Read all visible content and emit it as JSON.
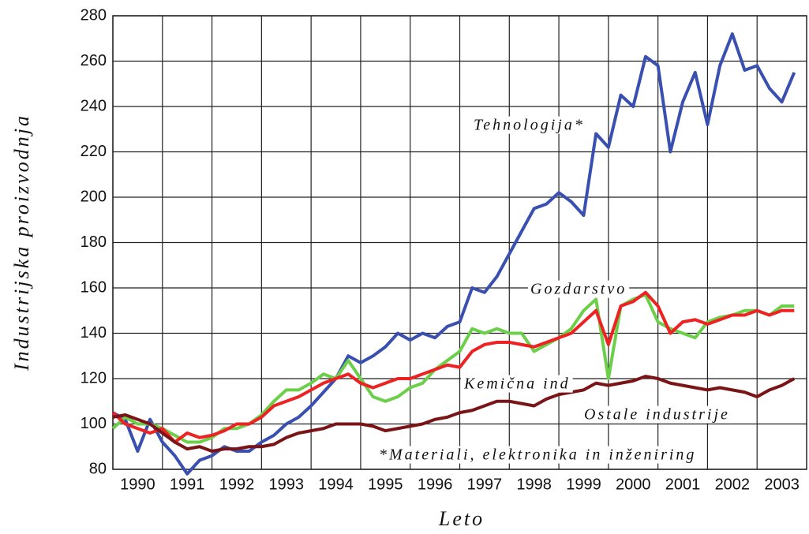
{
  "chart_data": {
    "type": "line",
    "ylabel": "Industrijska proizvodnja",
    "xlabel": "Leto",
    "annotation": "*Materiali, elektronika in inženiring",
    "x": [
      1990,
      1990.25,
      1990.5,
      1990.75,
      1991,
      1991.25,
      1991.5,
      1991.75,
      1992,
      1992.25,
      1992.5,
      1992.75,
      1993,
      1993.25,
      1993.5,
      1993.75,
      1994,
      1994.25,
      1994.5,
      1994.75,
      1995,
      1995.25,
      1995.5,
      1995.75,
      1996,
      1996.25,
      1996.5,
      1996.75,
      1997,
      1997.25,
      1997.5,
      1997.75,
      1998,
      1998.25,
      1998.5,
      1998.75,
      1999,
      1999.25,
      1999.5,
      1999.75,
      2000,
      2000.25,
      2000.5,
      2000.75,
      2001,
      2001.25,
      2001.5,
      2001.75,
      2002,
      2002.25,
      2002.5,
      2002.75,
      2003,
      2003.25,
      2003.5,
      2003.75
    ],
    "series": [
      {
        "name": "Tehnologija*",
        "color": "#3a50b0",
        "values": [
          105,
          102,
          88,
          102,
          92,
          86,
          78,
          84,
          86,
          90,
          88,
          88,
          92,
          95,
          100,
          103,
          108,
          114,
          120,
          130,
          127,
          130,
          134,
          140,
          137,
          140,
          138,
          143,
          145,
          160,
          158,
          165,
          175,
          185,
          195,
          197,
          202,
          198,
          192,
          228,
          222,
          245,
          240,
          262,
          258,
          220,
          242,
          255,
          232,
          258,
          272,
          256,
          258,
          248,
          242,
          255
        ]
      },
      {
        "name": "Gozdarstvo",
        "color": "#6ccf4a",
        "values": [
          98,
          103,
          100,
          100,
          98,
          95,
          92,
          92,
          94,
          98,
          98,
          100,
          104,
          110,
          115,
          115,
          118,
          122,
          120,
          128,
          120,
          112,
          110,
          112,
          116,
          118,
          124,
          128,
          132,
          142,
          140,
          142,
          140,
          140,
          132,
          135,
          138,
          142,
          150,
          155,
          120,
          152,
          155,
          157,
          145,
          142,
          140,
          138,
          145,
          147,
          148,
          150,
          150,
          148,
          152,
          152
        ]
      },
      {
        "name": "Kemična ind",
        "color": "#ee2222",
        "values": [
          105,
          100,
          98,
          96,
          98,
          92,
          96,
          94,
          95,
          97,
          100,
          100,
          103,
          108,
          110,
          112,
          115,
          118,
          120,
          122,
          118,
          116,
          118,
          120,
          120,
          122,
          124,
          126,
          125,
          132,
          135,
          136,
          136,
          135,
          134,
          136,
          138,
          140,
          145,
          150,
          135,
          152,
          154,
          158,
          152,
          140,
          145,
          146,
          144,
          146,
          148,
          148,
          150,
          148,
          150,
          150
        ]
      },
      {
        "name": "Ostale industrije",
        "color": "#7a1416",
        "values": [
          103,
          104,
          102,
          100,
          96,
          92,
          89,
          90,
          88,
          89,
          89,
          90,
          90,
          91,
          94,
          96,
          97,
          98,
          100,
          100,
          100,
          99,
          97,
          98,
          99,
          100,
          102,
          103,
          105,
          106,
          108,
          110,
          110,
          109,
          108,
          111,
          113,
          114,
          115,
          118,
          117,
          118,
          119,
          121,
          120,
          118,
          117,
          116,
          115,
          116,
          115,
          114,
          112,
          115,
          117,
          120
        ]
      }
    ],
    "xlim": [
      1990,
      2004
    ],
    "ylim": [
      80,
      280
    ],
    "xticks": [
      1990,
      1991,
      1992,
      1993,
      1994,
      1995,
      1996,
      1997,
      1998,
      1999,
      2000,
      2001,
      2002,
      2003
    ],
    "yticks": [
      80,
      100,
      120,
      140,
      160,
      180,
      200,
      220,
      240,
      260,
      280
    ],
    "grid": true
  }
}
